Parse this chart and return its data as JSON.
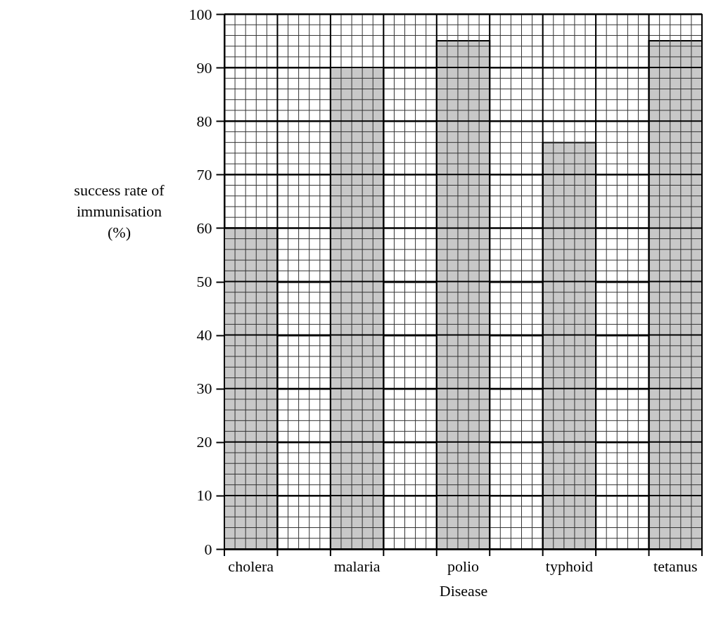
{
  "chart_data": {
    "type": "bar",
    "xlabel": "Disease",
    "ylabel": "success rate of immunisation (%)",
    "categories": [
      "cholera",
      "malaria",
      "polio",
      "typhoid",
      "tetanus"
    ],
    "values": [
      60,
      90,
      95,
      76,
      95
    ],
    "color": "#c8c8c8",
    "ylim": [
      0,
      100
    ],
    "yticks": [
      0,
      10,
      20,
      30,
      40,
      50,
      60,
      70,
      80,
      90,
      100
    ],
    "grid": true
  }
}
